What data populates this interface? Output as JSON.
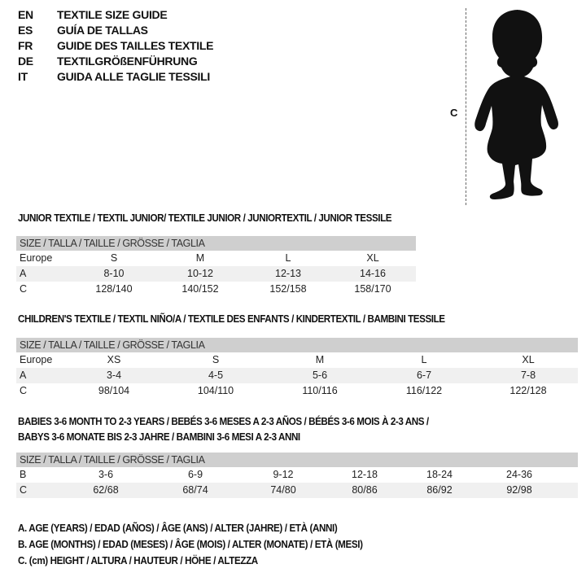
{
  "languages": [
    {
      "code": "EN",
      "text": "TEXTILE SIZE GUIDE"
    },
    {
      "code": "ES",
      "text": "GUÍA DE TALLAS"
    },
    {
      "code": "FR",
      "text": "GUIDE DES TAILLES TEXTILE"
    },
    {
      "code": "DE",
      "text": "TEXTILGRÖßENFÜHRUNG"
    },
    {
      "code": "IT",
      "text": "GUIDA ALLE TAGLIE TESSILI"
    }
  ],
  "figure": {
    "measure_label": "C",
    "icon": "toddler-silhouette"
  },
  "junior": {
    "title": "JUNIOR TEXTILE / TEXTIL JUNIOR/ TEXTILE JUNIOR / JUNIORTEXTIL / JUNIOR TESSILE",
    "header": "SIZE / TALLA / TAILLE / GRÖSSE / TAGLIA",
    "rows": [
      {
        "label": "Europe",
        "cells": [
          "S",
          "M",
          "L",
          "XL"
        ]
      },
      {
        "label": "A",
        "cells": [
          "8-10",
          "10-12",
          "12-13",
          "14-16"
        ]
      },
      {
        "label": "C",
        "cells": [
          "128/140",
          "140/152",
          "152/158",
          "158/170"
        ]
      }
    ]
  },
  "children": {
    "title": "CHILDREN'S TEXTILE / TEXTIL NIÑO/A / TEXTILE DES ENFANTS / KINDERTEXTIL / BAMBINI TESSILE",
    "header": "SIZE / TALLA / TAILLE / GRÖSSE / TAGLIA",
    "rows": [
      {
        "label": "Europe",
        "cells": [
          "XS",
          "S",
          "M",
          "L",
          "XL"
        ]
      },
      {
        "label": "A",
        "cells": [
          "3-4",
          "4-5",
          "5-6",
          "6-7",
          "7-8"
        ]
      },
      {
        "label": "C",
        "cells": [
          "98/104",
          "104/110",
          "110/116",
          "116/122",
          "122/128"
        ]
      }
    ]
  },
  "babies": {
    "title_line1": "BABIES 3-6 MONTH TO 2-3 YEARS / BEBÉS 3-6 MESES A 2-3 AÑOS / BÉBÉS 3-6 MOIS À 2-3 ANS /",
    "title_line2": "BABYS 3-6 MONATE BIS 2-3 JAHRE / BAMBINI 3-6 MESI A 2-3 ANNI",
    "header": "SIZE / TALLA / TAILLE / GRÖSSE / TAGLIA",
    "rows": [
      {
        "label": "B",
        "cells": [
          "3-6",
          "6-9",
          "9-12",
          "12-18",
          "18-24",
          "24-36"
        ]
      },
      {
        "label": "C",
        "cells": [
          "62/68",
          "68/74",
          "74/80",
          "80/86",
          "86/92",
          "92/98"
        ]
      }
    ]
  },
  "legend": [
    "A. AGE (YEARS) / EDAD (AÑOS) / ÂGE (ANS) / ALTER (JAHRE) / ETÀ (ANNI)",
    "B. AGE (MONTHS) / EDAD (MESES) / ÂGE (MOIS) / ALTER (MONATE) / ETÀ (MESI)",
    "C. (cm) HEIGHT / ALTURA / HAUTEUR / HÖHE / ALTEZZA"
  ]
}
